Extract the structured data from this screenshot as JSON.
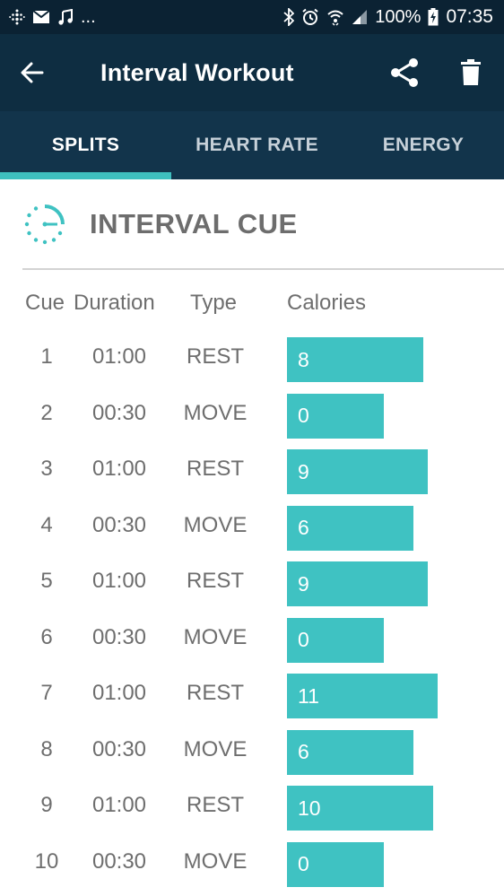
{
  "status_bar": {
    "left_icons": [
      "fitbit-icon",
      "mail-icon",
      "music-icon"
    ],
    "ellipsis": "...",
    "battery": "100%",
    "time": "07:35"
  },
  "app_bar": {
    "title": "Interval Workout"
  },
  "tabs": [
    {
      "label": "SPLITS",
      "active": true
    },
    {
      "label": "HEART RATE",
      "active": false
    },
    {
      "label": "ENERGY",
      "active": false
    }
  ],
  "section": {
    "title": "INTERVAL CUE"
  },
  "table": {
    "headers": {
      "cue": "Cue",
      "duration": "Duration",
      "type": "Type",
      "calories": "Calories"
    },
    "max_calories": 11,
    "rows": [
      {
        "cue": "1",
        "duration": "01:00",
        "type": "REST",
        "calories": "8"
      },
      {
        "cue": "2",
        "duration": "00:30",
        "type": "MOVE",
        "calories": "0"
      },
      {
        "cue": "3",
        "duration": "01:00",
        "type": "REST",
        "calories": "9"
      },
      {
        "cue": "4",
        "duration": "00:30",
        "type": "MOVE",
        "calories": "6"
      },
      {
        "cue": "5",
        "duration": "01:00",
        "type": "REST",
        "calories": "9"
      },
      {
        "cue": "6",
        "duration": "00:30",
        "type": "MOVE",
        "calories": "0"
      },
      {
        "cue": "7",
        "duration": "01:00",
        "type": "REST",
        "calories": "11"
      },
      {
        "cue": "8",
        "duration": "00:30",
        "type": "MOVE",
        "calories": "6"
      },
      {
        "cue": "9",
        "duration": "01:00",
        "type": "REST",
        "calories": "10"
      },
      {
        "cue": "10",
        "duration": "00:30",
        "type": "MOVE",
        "calories": "0"
      }
    ]
  },
  "colors": {
    "accent": "#3fc2c2",
    "app_bar": "#0e2d41",
    "tabs": "#12344b"
  }
}
